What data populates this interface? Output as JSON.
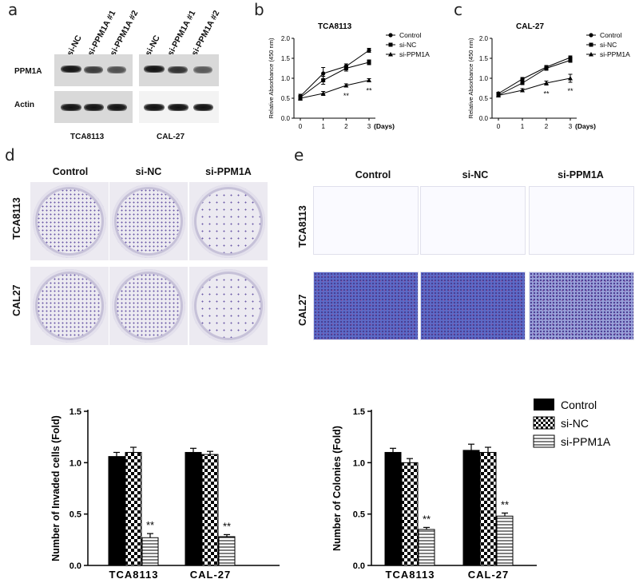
{
  "panel_letters": {
    "a": "a",
    "b": "b",
    "c": "c",
    "d": "d",
    "e": "e"
  },
  "panel_a": {
    "lane_labels": [
      "si-NC",
      "si-PPM1A #1",
      "si-PPM1A #2",
      "si-NC",
      "si-PPM1A #1",
      "si-PPM1A #2"
    ],
    "row_labels": [
      "PPM1A",
      "Actin"
    ],
    "cell_lines": [
      "TCA8113",
      "CAL-27"
    ]
  },
  "panel_d": {
    "columns": [
      "Control",
      "si-NC",
      "si-PPM1A"
    ],
    "rows": [
      "TCA8113",
      "CAL27"
    ]
  },
  "panel_e": {
    "columns": [
      "Control",
      "si-NC",
      "si-PPM1A"
    ],
    "rows": [
      "TCA8113",
      "CAL27"
    ]
  },
  "legend_bar": [
    "Control",
    "si-NC",
    "si-PPM1A"
  ],
  "chart_data": [
    {
      "id": "b",
      "type": "line",
      "title": "TCA8113",
      "ylabel": "Relative Absorbance (450 nm)",
      "xlabel": "(Days)",
      "x": [
        0,
        1,
        2,
        3
      ],
      "xticks": [
        "0",
        "1",
        "2",
        "3"
      ],
      "ylim": [
        0,
        2.0
      ],
      "yticks": [
        "0.0",
        "0.5",
        "1.0",
        "1.5",
        "2.0"
      ],
      "series": [
        {
          "name": "Control",
          "marker": "circle",
          "values": [
            0.55,
            1.12,
            1.3,
            1.7
          ],
          "errors": [
            0.05,
            0.15,
            0.06,
            0.05
          ]
        },
        {
          "name": "si-NC",
          "marker": "square",
          "values": [
            0.52,
            0.95,
            1.25,
            1.4
          ],
          "errors": [
            0.05,
            0.1,
            0.07,
            0.06
          ]
        },
        {
          "name": "si-PPM1A",
          "marker": "triangle",
          "values": [
            0.5,
            0.62,
            0.82,
            0.95
          ],
          "errors": [
            0.05,
            0.05,
            0.04,
            0.04
          ]
        }
      ],
      "annotations": [
        {
          "x": 2,
          "text": "**"
        },
        {
          "x": 3,
          "text": "**"
        }
      ]
    },
    {
      "id": "c",
      "type": "line",
      "title": "CAL-27",
      "ylabel": "Relative Absorbance (450 nm)",
      "xlabel": "(Days)",
      "x": [
        0,
        1,
        2,
        3
      ],
      "xticks": [
        "0",
        "1",
        "2",
        "3"
      ],
      "ylim": [
        0,
        2.0
      ],
      "yticks": [
        "0.0",
        "0.5",
        "1.0",
        "1.5",
        "2.0"
      ],
      "series": [
        {
          "name": "Control",
          "marker": "circle",
          "values": [
            0.62,
            0.98,
            1.28,
            1.52
          ],
          "errors": [
            0.03,
            0.04,
            0.04,
            0.04
          ]
        },
        {
          "name": "si-NC",
          "marker": "square",
          "values": [
            0.58,
            0.88,
            1.25,
            1.45
          ],
          "errors": [
            0.03,
            0.04,
            0.05,
            0.05
          ]
        },
        {
          "name": "si-PPM1A",
          "marker": "triangle",
          "values": [
            0.57,
            0.7,
            0.88,
            1.0
          ],
          "errors": [
            0.03,
            0.04,
            0.05,
            0.1
          ]
        }
      ],
      "annotations": [
        {
          "x": 2,
          "text": "**"
        },
        {
          "x": 3,
          "text": "**"
        }
      ]
    },
    {
      "id": "invaded",
      "type": "bar",
      "ylabel": "Number of Invaded cells (Fold)",
      "categories": [
        "TCA8113",
        "CAL-27"
      ],
      "ylim": [
        0,
        1.5
      ],
      "yticks": [
        "0.0",
        "0.5",
        "1.0",
        "1.5"
      ],
      "series": [
        {
          "name": "Control",
          "values": [
            1.06,
            1.1
          ],
          "errors": [
            0.04,
            0.04
          ]
        },
        {
          "name": "si-NC",
          "values": [
            1.1,
            1.08
          ],
          "errors": [
            0.05,
            0.03
          ]
        },
        {
          "name": "si-PPM1A",
          "values": [
            0.27,
            0.28
          ],
          "errors": [
            0.04,
            0.02
          ]
        }
      ],
      "annotations": [
        "**",
        "**"
      ]
    },
    {
      "id": "colonies",
      "type": "bar",
      "ylabel": "Number of Colonies (Fold)",
      "categories": [
        "TCA8113",
        "CAL-27"
      ],
      "ylim": [
        0,
        1.5
      ],
      "yticks": [
        "0.0",
        "0.5",
        "1.0",
        "1.5"
      ],
      "series": [
        {
          "name": "Control",
          "values": [
            1.1,
            1.12
          ],
          "errors": [
            0.04,
            0.06
          ]
        },
        {
          "name": "si-NC",
          "values": [
            1.0,
            1.1
          ],
          "errors": [
            0.04,
            0.05
          ]
        },
        {
          "name": "si-PPM1A",
          "values": [
            0.35,
            0.48
          ],
          "errors": [
            0.02,
            0.03
          ]
        }
      ],
      "annotations": [
        "**",
        "**"
      ]
    }
  ]
}
